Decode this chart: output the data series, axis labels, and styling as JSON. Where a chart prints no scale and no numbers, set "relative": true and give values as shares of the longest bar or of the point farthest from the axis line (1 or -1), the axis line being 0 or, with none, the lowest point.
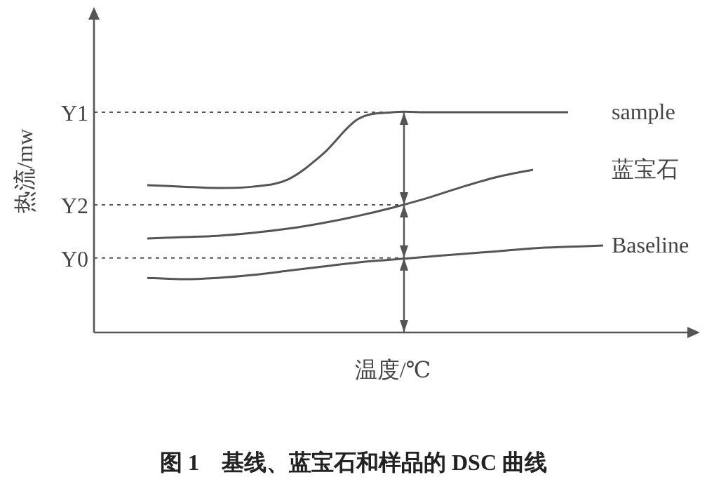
{
  "chart_data": {
    "type": "line",
    "title": "图 1　基线、蓝宝石和样品的 DSC 曲线",
    "xlabel": "温度/℃",
    "ylabel": "热流/mw",
    "relative": true,
    "legend": false,
    "grid": false,
    "marker": "none",
    "line_style": "solid",
    "categories": [
      null,
      null,
      null,
      null,
      null,
      null,
      null,
      null,
      null,
      null,
      null,
      null,
      null,
      null
    ],
    "series": [
      {
        "name": "sample",
        "color": "#555555",
        "values": [
          0.669,
          0.662,
          0.656,
          0.662,
          0.694,
          0.809,
          0.968,
          1,
          1,
          1,
          1,
          1,
          1,
          null
        ]
      },
      {
        "name": "蓝宝石",
        "color": "#555555",
        "values": [
          0.427,
          0.433,
          0.439,
          0.452,
          0.471,
          0.497,
          0.529,
          0.567,
          0.611,
          0.662,
          0.707,
          0.739,
          null,
          null
        ]
      },
      {
        "name": "Baseline",
        "color": "#555555",
        "values": [
          0.248,
          0.242,
          0.248,
          0.261,
          0.28,
          0.299,
          0.318,
          0.331,
          0.344,
          0.357,
          0.369,
          0.382,
          0.389,
          0.395
        ]
      }
    ],
    "ref_lines": [
      {
        "axis": "y",
        "value": 1,
        "label": "Y1",
        "line_style": "dotted",
        "color": "#555555"
      },
      {
        "axis": "y",
        "value": 0.58,
        "label": "Y2",
        "line_style": "dotted",
        "color": "#555555"
      },
      {
        "axis": "y",
        "value": 0.338,
        "label": "Y0",
        "line_style": "dotted",
        "color": "#555555"
      }
    ]
  }
}
